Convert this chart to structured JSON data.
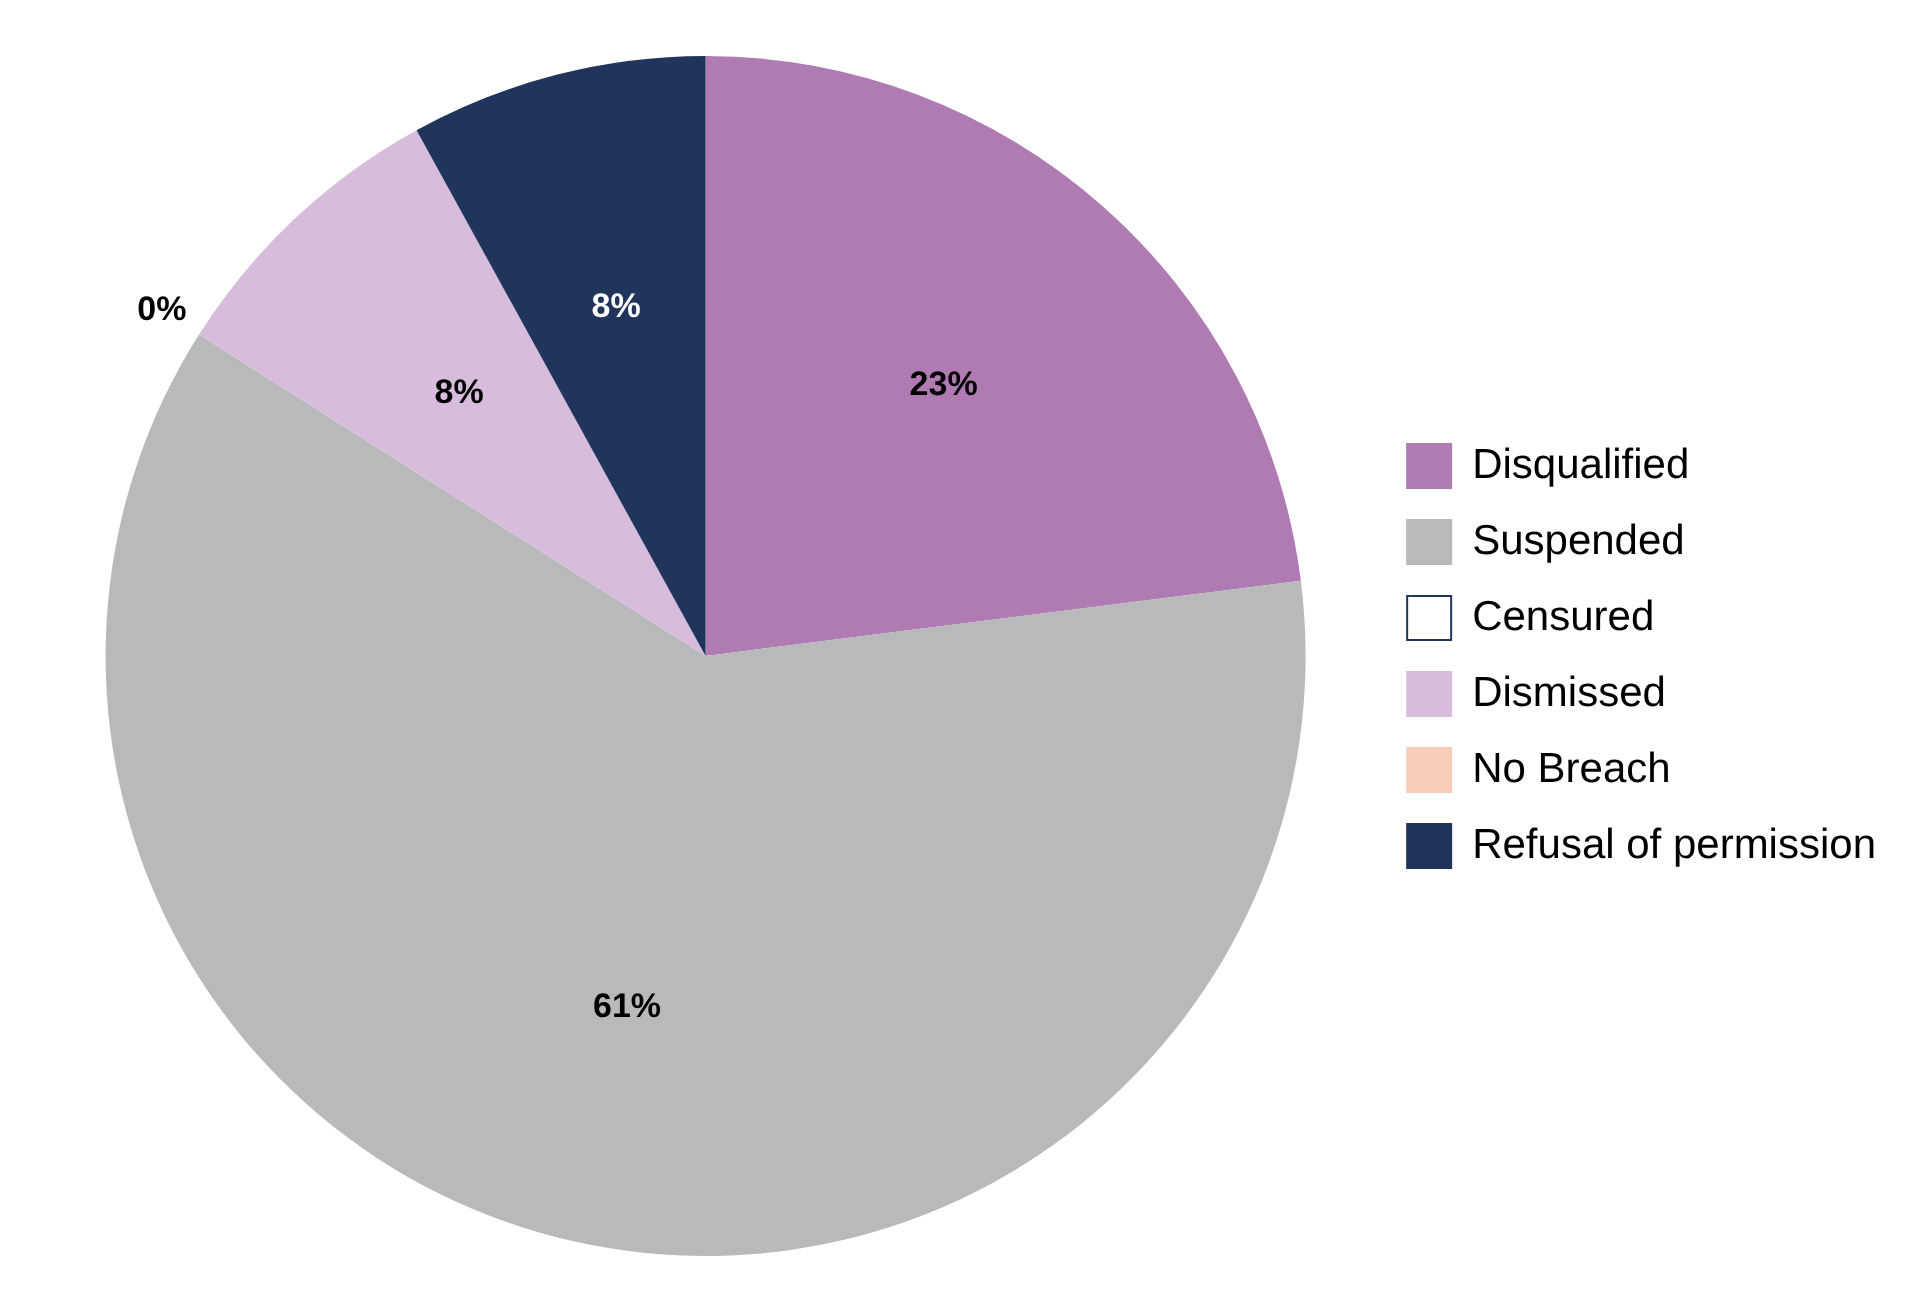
{
  "chart_data": {
    "type": "pie",
    "categories": [
      "Disqualified",
      "Suspended",
      "Censured",
      "Dismissed",
      "No Breach",
      "Refusal of permission"
    ],
    "values": [
      23,
      61,
      0,
      8,
      0,
      8
    ],
    "colors": [
      "#b07ab2",
      "#b8b9bb",
      "#ffffff",
      "#d8bcdc",
      "#f8cdb8",
      "#20345c"
    ],
    "value_labels": [
      "23%",
      "61%",
      "0%",
      "8%",
      null,
      "8%"
    ],
    "legend": "right"
  }
}
